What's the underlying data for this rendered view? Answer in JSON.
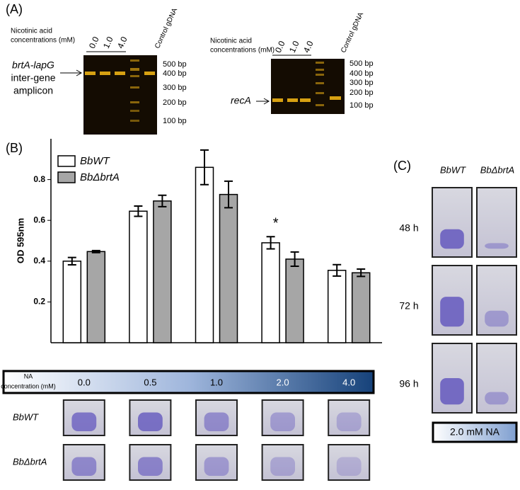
{
  "panel_labels": [
    "(A)",
    "(B)",
    "(C)"
  ],
  "panel_a": {
    "gel1": {
      "heading": [
        "Nicotinic acid",
        "concentrations (mM)"
      ],
      "lanes": [
        "0.0",
        "1.0",
        "4.0"
      ],
      "control": "Control gDNA",
      "markers": [
        "500 bp",
        "400 bp",
        "300 bp",
        "200 bp",
        "100 bp"
      ],
      "target": [
        "brtA-lapG",
        "inter-gene",
        "amplicon"
      ]
    },
    "gel2": {
      "heading": [
        "Nicotinic acid",
        "concentrations (mM)"
      ],
      "lanes": [
        "0.0",
        "1.0",
        "4.0"
      ],
      "control": "Control gDNA",
      "markers": [
        "500 bp",
        "400 bp",
        "300 bp",
        "200 bp",
        "100 bp"
      ],
      "target": "recA"
    }
  },
  "chart_data": {
    "type": "bar",
    "ylabel": "OD 595nm",
    "categories": [
      "0.0",
      "0.5",
      "1.0",
      "2.0",
      "4.0"
    ],
    "category_title": [
      "NA",
      "concentration (mM)"
    ],
    "series": [
      {
        "name": "BbWT",
        "color": "#ffffff",
        "values": [
          0.4,
          0.645,
          0.86,
          0.49,
          0.355
        ],
        "errors": [
          0.018,
          0.025,
          0.085,
          0.03,
          0.028
        ]
      },
      {
        "name": "BbΔbrtA",
        "color": "#a6a6a6",
        "values": [
          0.447,
          0.695,
          0.727,
          0.41,
          0.343
        ],
        "errors": [
          0.005,
          0.028,
          0.065,
          0.035,
          0.018
        ]
      }
    ],
    "ylim": [
      0,
      1.0
    ],
    "yticks": [
      0.2,
      0.4,
      0.6,
      0.8
    ],
    "legend": "upper left",
    "annotation": "*",
    "photo_rows": [
      "BbWT",
      "BbΔbrtA"
    ]
  },
  "panel_c": {
    "columns": [
      "BbWT",
      "BbΔbrtA"
    ],
    "rows": [
      "48 h",
      "72 h",
      "96 h"
    ],
    "condition": "2.0 mM NA"
  }
}
